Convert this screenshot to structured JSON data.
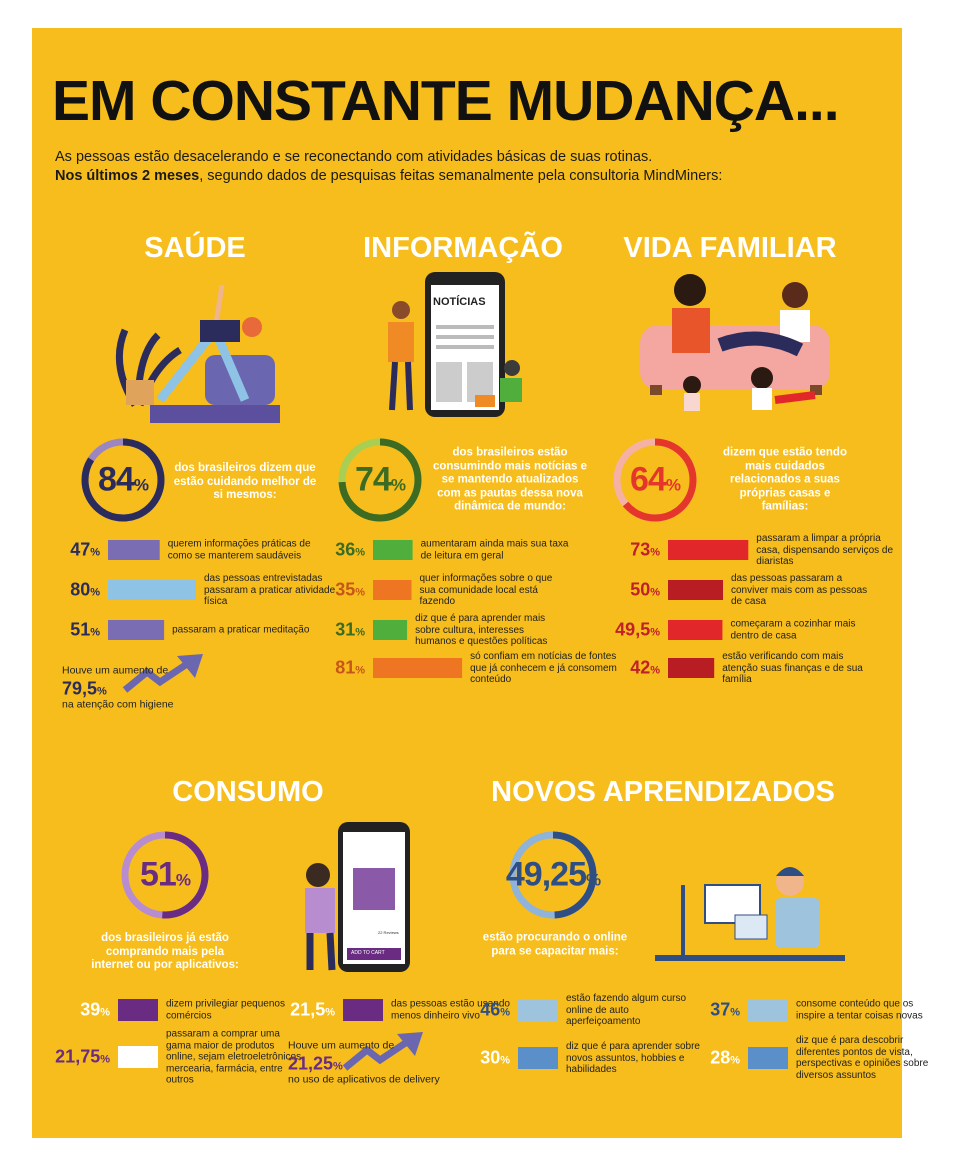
{
  "header": {
    "title": "EM CONSTANTE MUDANÇA...",
    "intro": "As pessoas estão desacelerando e se reconectando com atividades básicas de suas rotinas.",
    "highlight": "Nos últimos 2 meses",
    "intro_rest": ", segundo dados de pesquisas feitas semanalmente pela consultoria MindMiners:"
  },
  "unit": "%",
  "sections": [
    {
      "title": "SAÚDE",
      "ring": {
        "value": 84,
        "color": "#2b2c5c",
        "track": "#9b86c2",
        "text": "dos brasileiros dizem que estão cuidando melhor de si mesmos:"
      },
      "items": [
        {
          "value": 47,
          "color": "#7a6db3",
          "text": "querem informações práticas de como se manterem saudáveis"
        },
        {
          "value": 80,
          "color": "#8ec3e6",
          "text": "das pessoas entrevistadas passaram a praticar atividade física"
        },
        {
          "value": 51,
          "color": "#7a6db3",
          "text": "passaram a praticar meditação"
        }
      ],
      "trend": {
        "before": "Houve um aumento de",
        "value": 79.5,
        "label": "79,5",
        "after": "na atenção com higiene"
      }
    },
    {
      "title": "INFORMAÇÃO",
      "ring": {
        "value": 74,
        "color": "#3d6b22",
        "track": "#a8cf52",
        "text": "dos brasileiros estão consumindo mais notícias e se mantendo atualizados com as pautas dessa nova dinâmica de mundo:"
      },
      "items": [
        {
          "value": 36,
          "color": "#4fae3c",
          "text": "aumentaram ainda mais sua taxa de leitura em geral"
        },
        {
          "value": 35,
          "color": "#ee7622",
          "text": "quer informações sobre o que sua comunidade local está fazendo"
        },
        {
          "value": 31,
          "color": "#4fae3c",
          "text": "diz que é para aprender mais sobre cultura, interesses humanos e questões políticas"
        },
        {
          "value": 81,
          "color": "#ee7622",
          "text": "só confiam em notícias de fontes que já conhecem e já consomem conteúdo"
        }
      ]
    },
    {
      "title": "VIDA FAMILIAR",
      "ring": {
        "value": 64,
        "color": "#e4362b",
        "track": "#f5b1a4",
        "text": "dizem que estão tendo mais cuidados relacionados a suas próprias casas e famílias:"
      },
      "items": [
        {
          "value": 73,
          "color": "#e2272a",
          "text": "passaram a limpar a própria casa, dispensando serviços de diaristas"
        },
        {
          "value": 50,
          "color": "#b71d22",
          "text": "das pessoas passaram a conviver mais com as pessoas de casa"
        },
        {
          "value": 49.5,
          "label": "49,5",
          "color": "#e2272a",
          "text": "começaram a cozinhar mais dentro de casa"
        },
        {
          "value": 42,
          "color": "#b71d22",
          "text": "estão verificando com mais atenção suas finanças e de sua família"
        }
      ]
    },
    {
      "title": "CONSUMO",
      "ring": {
        "value": 51,
        "color": "#6a2c82",
        "track": "#b88dd0",
        "text": "dos brasileiros já estão comprando mais pela internet ou por aplicativos:"
      },
      "items": [
        {
          "value": 39,
          "color": "#6a2c82",
          "text": "dizem privilegiar pequenos comércios"
        },
        {
          "value": 21.75,
          "label": "21,75",
          "color": "#ffffff",
          "text": "passaram a comprar uma gama maior de produtos online, sejam eletroeletrônicos, mercearia, farmácia, entre outros"
        },
        {
          "value": 21.5,
          "label": "21,5",
          "color": "#6a2c82",
          "text": "das pessoas estão usando menos dinheiro vivo"
        }
      ],
      "trend": {
        "before": "Houve um aumento de",
        "value": 21.25,
        "label": "21,25",
        "after": "no uso de aplicativos de delivery"
      }
    },
    {
      "title": "NOVOS APRENDIZADOS",
      "ring": {
        "value": 49.25,
        "label": "49,25",
        "color": "#2f4f84",
        "track": "#8fb3d9",
        "text": "estão procurando o online para se capacitar mais:"
      },
      "items": [
        {
          "value": 46,
          "color": "#9ec3dc",
          "text": "estão fazendo algum curso online de auto aperfeiçoamento"
        },
        {
          "value": 37,
          "color": "#9ec3dc",
          "text": "consome conteúdo que os inspire a tentar coisas novas"
        },
        {
          "value": 30,
          "color": "#5b8fc9",
          "text": "diz que é para aprender sobre novos assuntos, hobbies e habilidades"
        },
        {
          "value": 28,
          "color": "#5b8fc9",
          "text": "diz que é para descobrir diferentes pontos de vista, perspectivas e opiniões sobre diversos assuntos"
        }
      ]
    }
  ],
  "illustrations": {
    "news": "NOTÍCIAS",
    "cart": "ADD TO CART",
    "reviews": "22 Reviews"
  }
}
